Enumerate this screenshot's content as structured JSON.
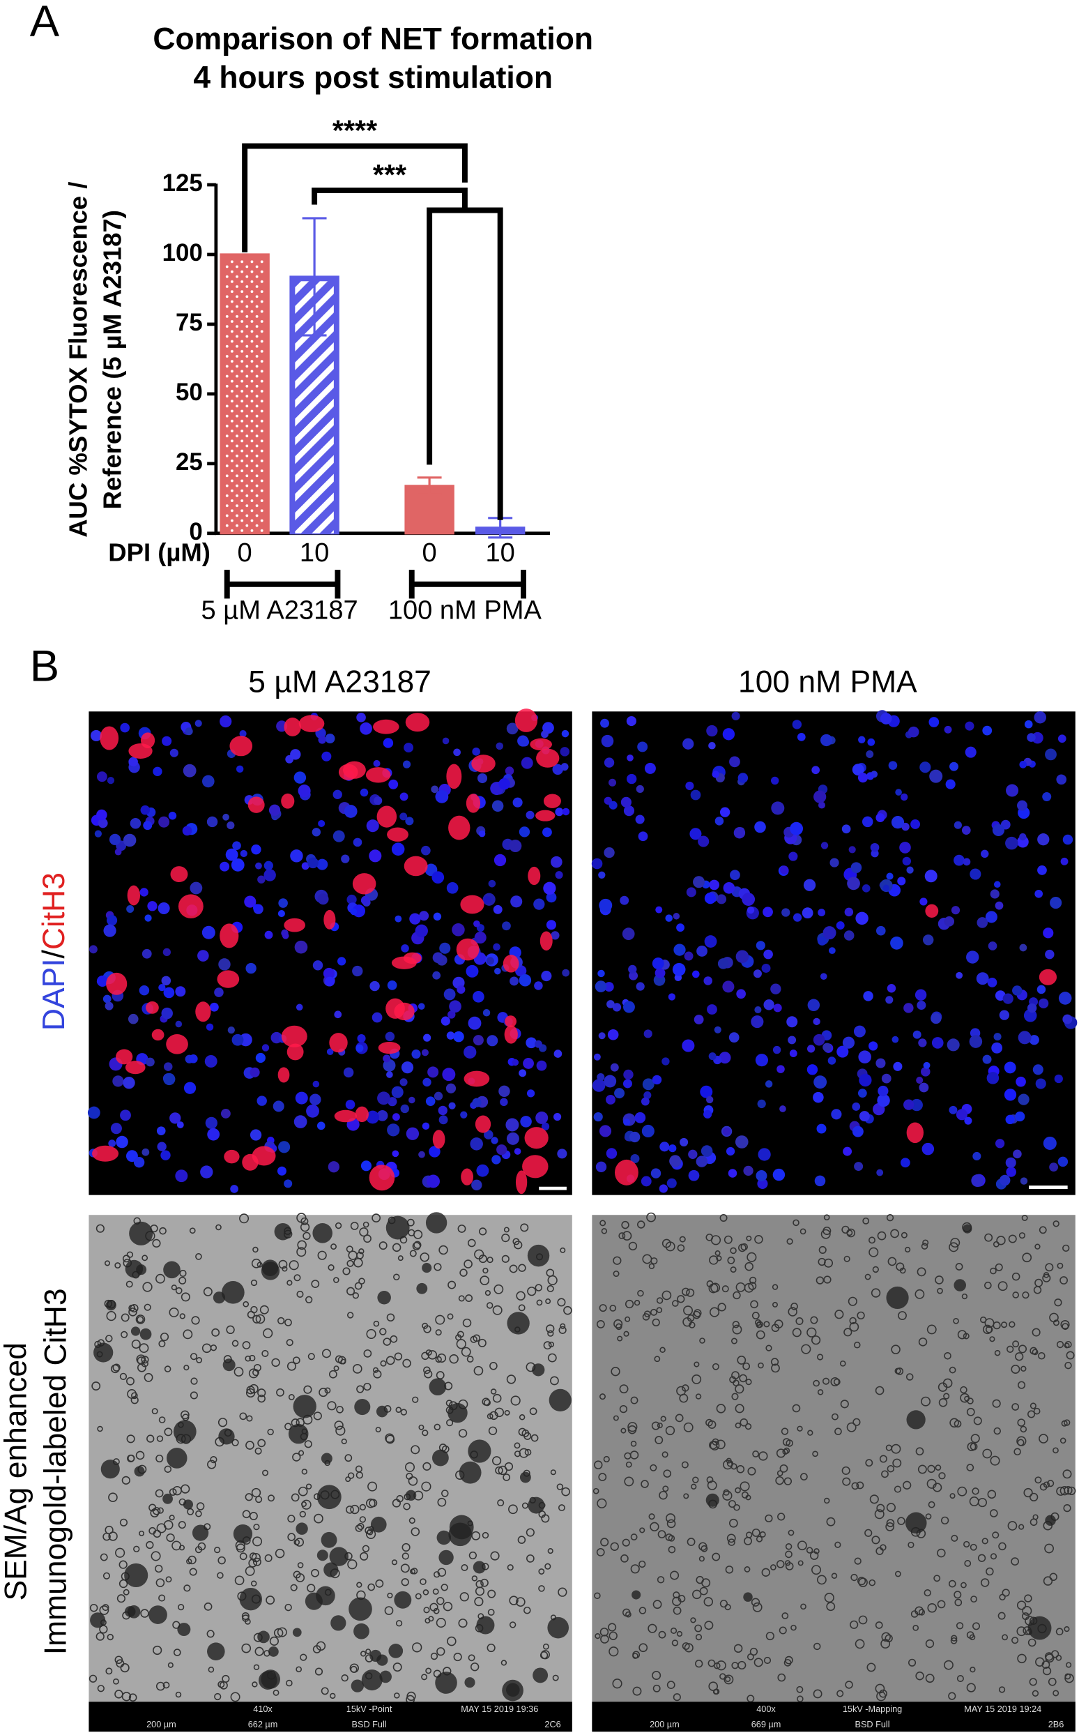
{
  "panel_labels": [
    "A",
    "B"
  ],
  "chart_data": {
    "type": "bar",
    "title": [
      "Comparison of NET formation",
      "4 hours post stimulation"
    ],
    "y_label": [
      "AUC %SYTOX Fluorescence /",
      "Reference (5 µM A23187)"
    ],
    "x_label": "DPI (µM)",
    "categories": [
      "0",
      "10",
      "0",
      "10"
    ],
    "values": [
      100,
      92,
      17,
      2
    ],
    "errors": [
      null,
      21,
      3,
      3.5
    ],
    "colors": [
      "#e06565",
      "#5a5ae6",
      "#e06565",
      "#5a5ae6"
    ],
    "patterns": [
      "dots",
      "hatch",
      null,
      null
    ],
    "groups": [
      {
        "label": "5 µM A23187",
        "members": [
          0,
          1
        ]
      },
      {
        "label": "100 nM PMA",
        "members": [
          2,
          3
        ]
      }
    ],
    "significance": [
      {
        "text": "****",
        "from": 0,
        "to_group": 1
      },
      {
        "text": "***",
        "from": 1,
        "to_group": 1
      }
    ],
    "ylim": [
      0,
      125
    ],
    "yticks": [
      0,
      25,
      50,
      75,
      100,
      125
    ]
  },
  "panel_b": {
    "column_headers": [
      "5 µM A23187",
      "100 nM PMA"
    ],
    "row_labels": [
      [
        "DAPI",
        "/",
        "CitH3"
      ],
      [
        "SEM/Ag enhanced",
        "Immunogold-labeled CitH3"
      ]
    ],
    "sem_footers": [
      [
        "200 µm",
        "410x",
        "662 µm",
        "15kV -Point",
        "BSD Full",
        "MAY 15 2019 19:36",
        "2C6"
      ],
      [
        "200 µm",
        "400x",
        "669 µm",
        "15kV -Mapping",
        "BSD Full",
        "MAY 15 2019 19:24",
        "2B6"
      ]
    ]
  }
}
